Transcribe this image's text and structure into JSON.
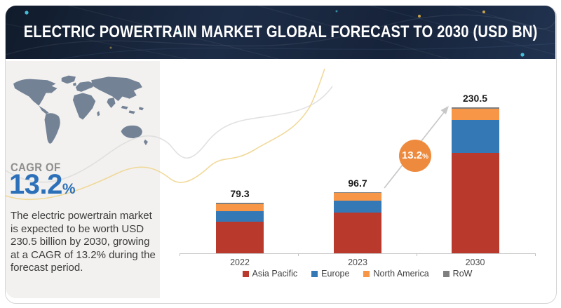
{
  "header": {
    "title": "ELECTRIC POWERTRAIN MARKET GLOBAL FORECAST TO 2030 (USD BN)"
  },
  "sidebar": {
    "cagr_label": "CAGR OF",
    "cagr_value": "13.2",
    "cagr_unit": "%",
    "description": "The electric powertrain market is expected to be worth USD 230.5 billion by 2030, growing at a CAGR of 13.2% during the forecast period."
  },
  "growth_badge": {
    "value": "13.2",
    "unit": "%"
  },
  "chart_data": {
    "type": "bar",
    "stacked": true,
    "title": "Electric Powertrain Market Global Forecast to 2030 (USD BN)",
    "categories": [
      "2022",
      "2023",
      "2030"
    ],
    "totals": [
      79.3,
      96.7,
      230.5
    ],
    "total_labels": [
      "79.3",
      "96.7",
      "230.5"
    ],
    "series": [
      {
        "name": "Asia Pacific",
        "color": "#b93a2d",
        "values": [
          50,
          64,
          159
        ]
      },
      {
        "name": "Europe",
        "color": "#3478b6",
        "values": [
          17,
          19.5,
          51
        ]
      },
      {
        "name": "North America",
        "color": "#f79646",
        "values": [
          11,
          12,
          18.5
        ]
      },
      {
        "name": "RoW",
        "color": "#7f7f7f",
        "values": [
          1.3,
          1.2,
          2
        ]
      }
    ],
    "cagr_annotation": "13.2%",
    "legend_position": "bottom",
    "grid": false,
    "ylim": [
      0,
      245
    ]
  },
  "colors": {
    "accent_blue": "#2b70b8",
    "badge_orange": "#ee8a3d",
    "banner_navy": "#1b2940",
    "sidebar_bg": "#f2f1ef",
    "map_fill": "#6b7a90",
    "axis_line": "#c9c9c9",
    "curve_yellow": "#f0d58e",
    "curve_gray": "#dcdcdc",
    "arrow_gray": "#c8c8c8",
    "card_border": "#d5d5d5"
  }
}
